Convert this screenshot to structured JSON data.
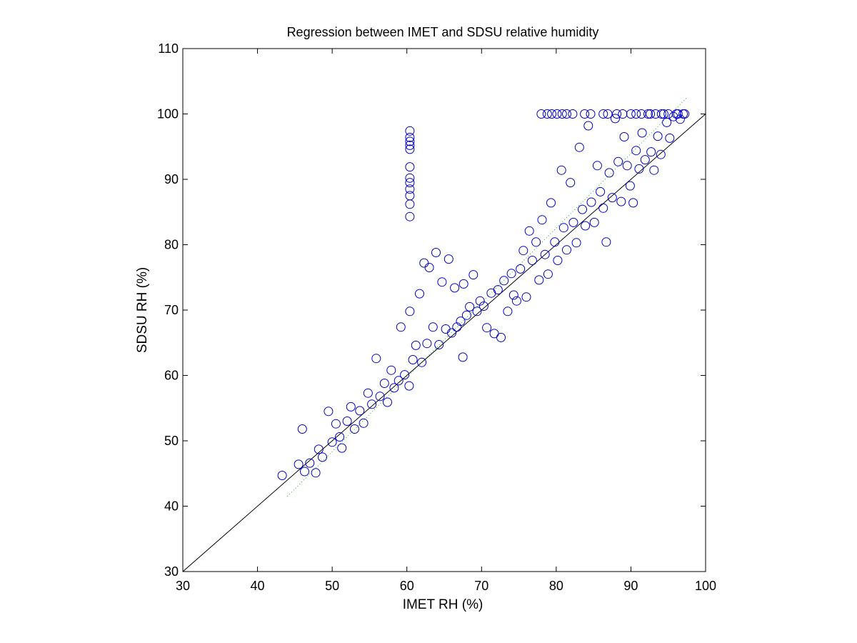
{
  "chart_data": {
    "type": "scatter",
    "title": "Regression between IMET and SDSU relative humidity",
    "xlabel": "IMET RH (%)",
    "ylabel": "SDSU RH (%)",
    "xlim": [
      30,
      100
    ],
    "ylim": [
      30,
      110
    ],
    "xticks": [
      "30",
      "40",
      "50",
      "60",
      "70",
      "80",
      "90",
      "100"
    ],
    "yticks": [
      "30",
      "40",
      "50",
      "60",
      "70",
      "80",
      "90",
      "100",
      "110"
    ],
    "grid": false,
    "legend": "none",
    "colors": {
      "marker": "#0000cc",
      "reference_line": "#000000",
      "fit_line": "#22aa22"
    },
    "reference_line": {
      "x": [
        30,
        100
      ],
      "y": [
        30,
        100
      ]
    },
    "fit_line": {
      "x": [
        44,
        97.5
      ],
      "y": [
        41.5,
        102.5
      ]
    },
    "series": [
      {
        "values": [
          [
            43.3,
            44.7
          ],
          [
            45.5,
            46.4
          ],
          [
            46.0,
            51.8
          ],
          [
            46.3,
            45.3
          ],
          [
            47.0,
            46.6
          ],
          [
            47.8,
            45.1
          ],
          [
            48.2,
            48.7
          ],
          [
            48.7,
            47.5
          ],
          [
            49.5,
            54.5
          ],
          [
            50.0,
            49.8
          ],
          [
            50.5,
            52.6
          ],
          [
            51.0,
            50.6
          ],
          [
            51.3,
            48.9
          ],
          [
            52.0,
            53.0
          ],
          [
            52.5,
            55.2
          ],
          [
            53.0,
            51.8
          ],
          [
            53.7,
            54.6
          ],
          [
            54.2,
            52.7
          ],
          [
            54.8,
            57.3
          ],
          [
            55.3,
            55.6
          ],
          [
            55.9,
            62.6
          ],
          [
            56.4,
            56.8
          ],
          [
            57.0,
            58.8
          ],
          [
            57.4,
            55.9
          ],
          [
            57.9,
            60.8
          ],
          [
            58.3,
            58.1
          ],
          [
            58.9,
            59.2
          ],
          [
            59.2,
            67.4
          ],
          [
            59.7,
            60.1
          ],
          [
            60.3,
            58.4
          ],
          [
            60.4,
            69.8
          ],
          [
            60.8,
            62.4
          ],
          [
            61.2,
            64.6
          ],
          [
            61.7,
            72.5
          ],
          [
            62.0,
            62.0
          ],
          [
            62.3,
            77.2
          ],
          [
            62.7,
            64.9
          ],
          [
            63.0,
            76.5
          ],
          [
            63.5,
            67.4
          ],
          [
            63.9,
            78.8
          ],
          [
            64.3,
            64.7
          ],
          [
            64.7,
            74.3
          ],
          [
            65.2,
            67.1
          ],
          [
            65.6,
            77.8
          ],
          [
            66.0,
            66.5
          ],
          [
            66.4,
            73.4
          ],
          [
            66.7,
            67.4
          ],
          [
            67.2,
            68.3
          ],
          [
            67.5,
            62.8
          ],
          [
            67.6,
            74.0
          ],
          [
            68.0,
            69.2
          ],
          [
            68.4,
            70.5
          ],
          [
            68.9,
            75.4
          ],
          [
            69.4,
            69.8
          ],
          [
            69.8,
            71.4
          ],
          [
            70.3,
            70.6
          ],
          [
            70.7,
            67.3
          ],
          [
            71.3,
            72.6
          ],
          [
            71.7,
            66.4
          ],
          [
            72.2,
            73.1
          ],
          [
            72.6,
            65.8
          ],
          [
            73.0,
            74.5
          ],
          [
            73.5,
            69.8
          ],
          [
            74.0,
            75.6
          ],
          [
            74.3,
            72.3
          ],
          [
            74.7,
            71.4
          ],
          [
            75.2,
            76.3
          ],
          [
            75.6,
            79.1
          ],
          [
            76.0,
            72.0
          ],
          [
            76.4,
            82.1
          ],
          [
            76.8,
            77.6
          ],
          [
            77.3,
            80.4
          ],
          [
            77.7,
            74.6
          ],
          [
            78.1,
            83.8
          ],
          [
            78.5,
            78.5
          ],
          [
            78.9,
            75.5
          ],
          [
            79.3,
            86.4
          ],
          [
            79.8,
            80.4
          ],
          [
            80.2,
            77.6
          ],
          [
            80.7,
            91.4
          ],
          [
            81.0,
            82.6
          ],
          [
            81.4,
            79.2
          ],
          [
            81.9,
            89.5
          ],
          [
            82.3,
            83.4
          ],
          [
            82.7,
            80.3
          ],
          [
            83.1,
            94.9
          ],
          [
            83.5,
            85.4
          ],
          [
            83.9,
            82.9
          ],
          [
            84.3,
            98.2
          ],
          [
            84.7,
            86.5
          ],
          [
            85.1,
            83.4
          ],
          [
            85.5,
            92.1
          ],
          [
            85.9,
            88.1
          ],
          [
            86.3,
            85.6
          ],
          [
            86.7,
            80.4
          ],
          [
            87.1,
            91.0
          ],
          [
            87.5,
            87.2
          ],
          [
            87.9,
            99.3
          ],
          [
            88.3,
            92.7
          ],
          [
            88.7,
            86.6
          ],
          [
            89.1,
            96.5
          ],
          [
            89.5,
            92.1
          ],
          [
            89.9,
            89.0
          ],
          [
            90.3,
            86.4
          ],
          [
            90.7,
            94.4
          ],
          [
            91.1,
            91.6
          ],
          [
            91.5,
            97.1
          ],
          [
            91.9,
            93.0
          ],
          [
            92.3,
            100.0
          ],
          [
            92.7,
            94.2
          ],
          [
            93.1,
            91.4
          ],
          [
            93.6,
            96.6
          ],
          [
            94.0,
            93.8
          ],
          [
            94.4,
            100.0
          ],
          [
            94.8,
            98.7
          ],
          [
            95.2,
            96.3
          ],
          [
            95.7,
            99.6
          ],
          [
            96.1,
            100.0
          ],
          [
            96.6,
            99.2
          ],
          [
            97.2,
            100.0
          ],
          [
            60.4,
            84.3
          ],
          [
            60.4,
            86.2
          ],
          [
            60.4,
            87.5
          ],
          [
            60.4,
            88.5
          ],
          [
            60.4,
            89.5
          ],
          [
            60.4,
            90.2
          ],
          [
            60.4,
            91.9
          ],
          [
            60.4,
            94.6
          ],
          [
            60.4,
            95.2
          ],
          [
            60.4,
            95.8
          ],
          [
            60.4,
            96.4
          ],
          [
            60.4,
            97.4
          ],
          [
            78.0,
            100.0
          ],
          [
            78.8,
            100.0
          ],
          [
            79.4,
            100.0
          ],
          [
            80.1,
            100.0
          ],
          [
            80.8,
            100.0
          ],
          [
            81.4,
            100.0
          ],
          [
            82.2,
            100.0
          ],
          [
            83.8,
            100.0
          ],
          [
            84.6,
            100.0
          ],
          [
            86.3,
            100.0
          ],
          [
            86.9,
            100.0
          ],
          [
            88.1,
            100.0
          ],
          [
            88.9,
            100.0
          ],
          [
            90.0,
            100.0
          ],
          [
            90.7,
            100.0
          ],
          [
            91.4,
            100.0
          ],
          [
            92.6,
            100.0
          ],
          [
            93.3,
            100.0
          ],
          [
            94.1,
            100.0
          ],
          [
            95.0,
            100.0
          ],
          [
            96.3,
            100.0
          ],
          [
            97.0,
            100.0
          ]
        ]
      }
    ]
  }
}
